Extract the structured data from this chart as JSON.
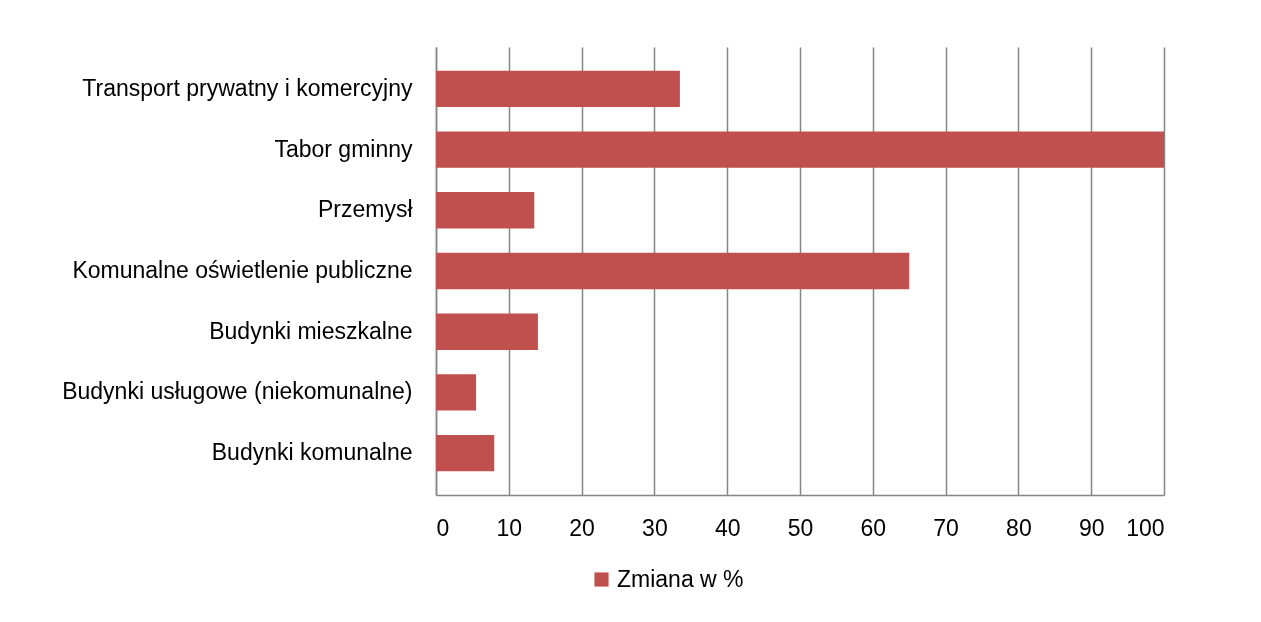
{
  "chart_data": {
    "type": "bar",
    "orientation": "horizontal",
    "categories": [
      "Transport prywatny i komercyjny",
      "Tabor gminny",
      "Przemysł",
      "Komunalne oświetlenie publiczne",
      "Budynki mieszkalne",
      "Budynki usługowe (niekomunalne)",
      "Budynki komunalne"
    ],
    "series": [
      {
        "name": "Zmiana w %",
        "color": "#c0504d",
        "values": [
          33.5,
          100,
          13.5,
          65,
          14,
          5.5,
          8
        ]
      }
    ],
    "xlim": [
      0,
      100
    ],
    "xticks": [
      0,
      10,
      20,
      30,
      40,
      50,
      60,
      70,
      80,
      90,
      100
    ],
    "grid": "x",
    "legend": "bottom"
  }
}
